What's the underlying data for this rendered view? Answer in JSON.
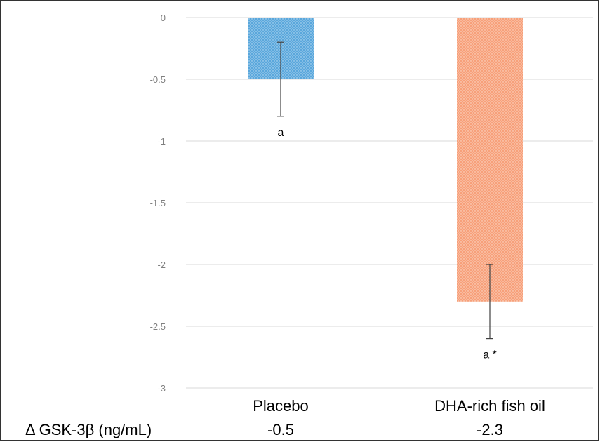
{
  "chart_data": {
    "type": "bar",
    "categories": [
      "Placebo",
      "DHA-rich fish oil"
    ],
    "values": [
      -0.5,
      -2.3
    ],
    "error_low": [
      -0.8,
      -2.6
    ],
    "error_high": [
      -0.2,
      -2.0
    ],
    "annotations": [
      "a",
      "a *"
    ],
    "colors": [
      "#5aa7dc",
      "#f7a07a"
    ],
    "yticks": [
      "0",
      "-0.5",
      "-1",
      "-1.5",
      "-2",
      "-2.5",
      "-3"
    ],
    "ytick_values": [
      0,
      -0.5,
      -1,
      -1.5,
      -2,
      -2.5,
      -3
    ],
    "ylim": [
      -3,
      0
    ],
    "grid": true,
    "table": {
      "row_label": "Δ GSK-3β (ng/mL)",
      "values": [
        "-0.5",
        "-2.3"
      ]
    }
  }
}
